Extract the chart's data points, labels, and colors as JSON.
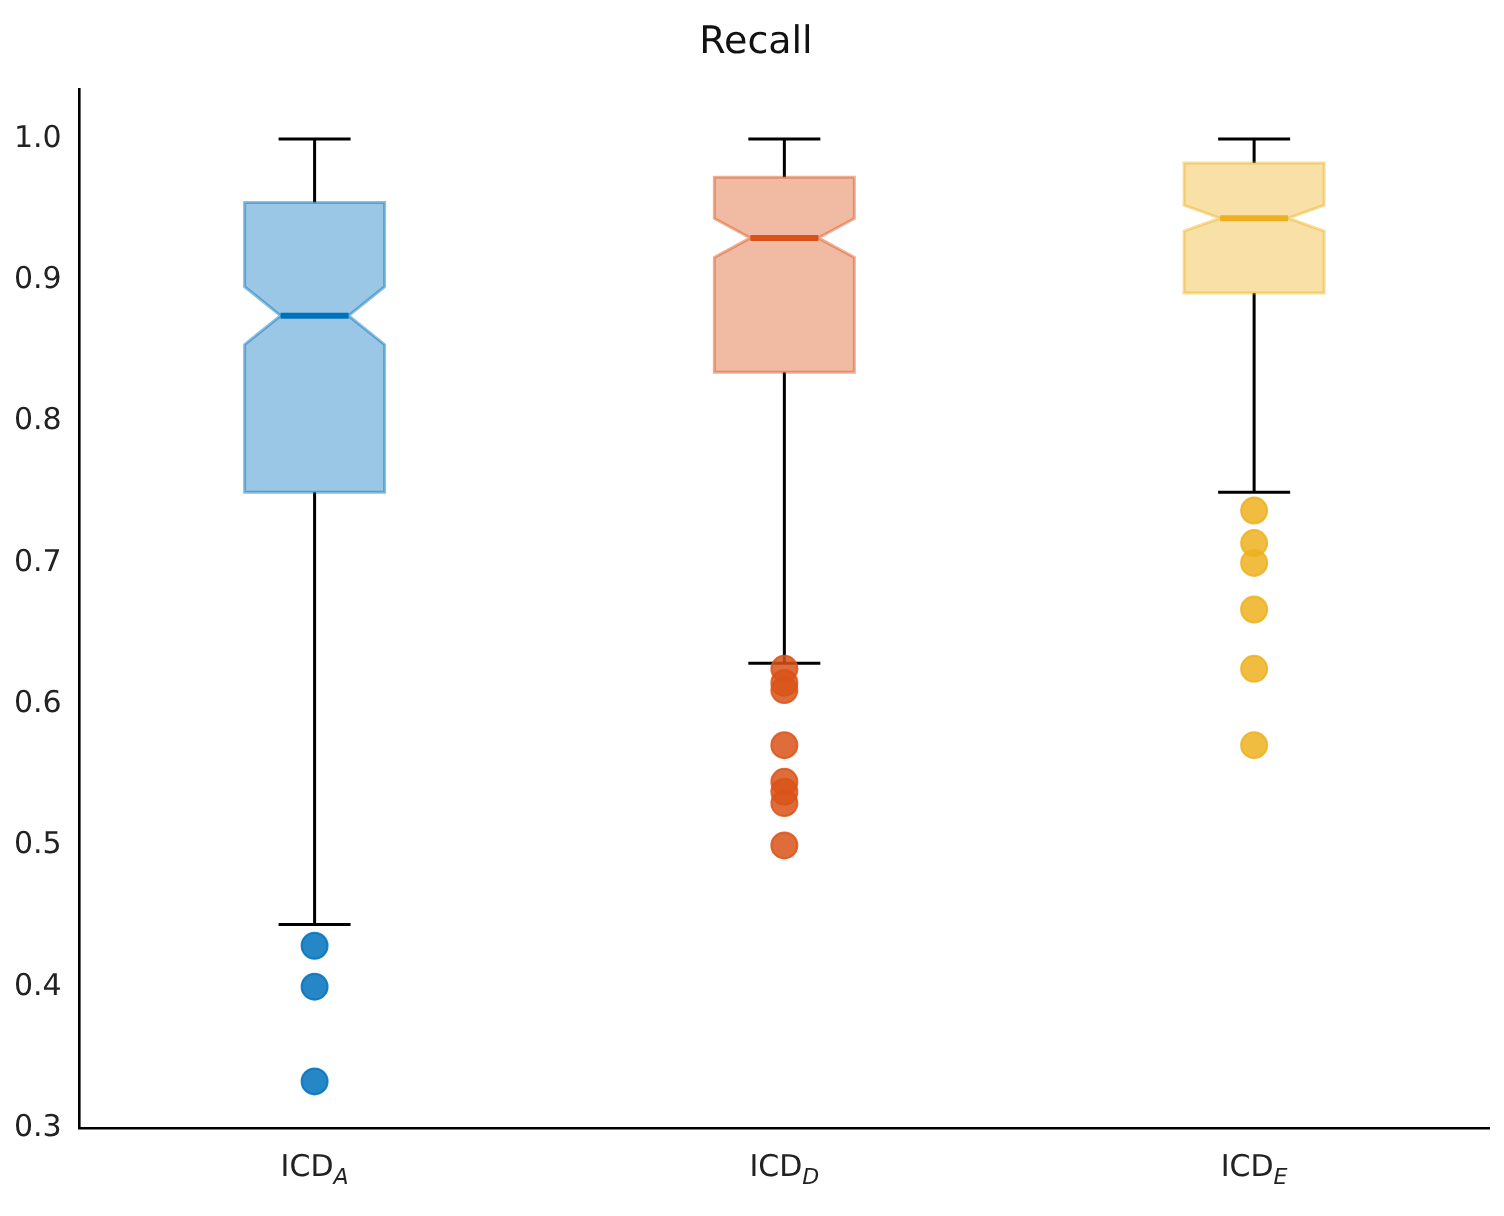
{
  "chart_data": {
    "type": "box",
    "title": "Recall",
    "categories": [
      "ICD$_{A}$",
      "ICD$_{D}$",
      "ICD$_{E}$"
    ],
    "colors": [
      "#0072bd",
      "#d95319",
      "#edb120"
    ],
    "boxes": [
      {
        "low": 0.444,
        "q1": 0.75,
        "median": 0.875,
        "q3": 0.955,
        "high": 1.0,
        "outliers": [
          0.429,
          0.4,
          0.333
        ]
      },
      {
        "low": 0.629,
        "q1": 0.835,
        "median": 0.93,
        "q3": 0.973,
        "high": 1.0,
        "outliers": [
          0.625,
          0.615,
          0.61,
          0.571,
          0.545,
          0.538,
          0.53,
          0.5
        ]
      },
      {
        "low": 0.75,
        "q1": 0.891,
        "median": 0.944,
        "q3": 0.983,
        "high": 1.0,
        "outliers": [
          0.737,
          0.714,
          0.7,
          0.667,
          0.625,
          0.571
        ]
      }
    ],
    "ylim": [
      0.3,
      1.035
    ],
    "yticks": [
      0.3,
      0.4,
      0.5,
      0.6,
      0.7,
      0.8,
      0.9,
      {
        "value": 1,
        "label": "1.0"
      }
    ],
    "grid": false,
    "legend": false
  }
}
